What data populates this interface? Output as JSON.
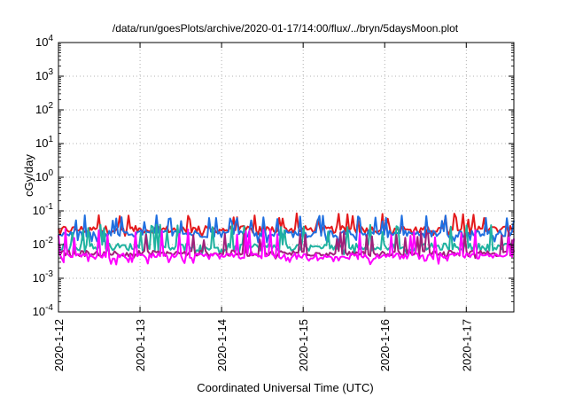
{
  "chart_data": {
    "type": "line",
    "title": "/data/run/goesPlots/archive/2020-01-17/14:00/flux/../bryn/5daysMoon.plot",
    "xlabel": "Coordinated Universal Time (UTC)",
    "ylabel": "cGy/day",
    "y_scale": "log",
    "ylim": [
      0.0001,
      10000
    ],
    "xlim": [
      "2020-01-12",
      "2020-01-17T14:00"
    ],
    "grid": true,
    "x_ticks": [
      "2020-1-12",
      "2020-1-13",
      "2020-1-14",
      "2020-1-15",
      "2020-1-16",
      "2020-1-17"
    ],
    "y_ticks": [
      {
        "base": "10",
        "exp": "-4"
      },
      {
        "base": "10",
        "exp": "-3"
      },
      {
        "base": "10",
        "exp": "-2"
      },
      {
        "base": "10",
        "exp": "-1"
      },
      {
        "base": "10",
        "exp": "0"
      },
      {
        "base": "10",
        "exp": "1"
      },
      {
        "base": "10",
        "exp": "2"
      },
      {
        "base": "10",
        "exp": "3"
      },
      {
        "base": "10",
        "exp": "4"
      }
    ],
    "series": [
      {
        "color": "#e41a1c",
        "baseline": 0.028,
        "spread": 0.25,
        "spike_high": 0.085,
        "dip_low": 0.02
      },
      {
        "color": "#1f6fe0",
        "baseline": 0.021,
        "spread": 0.25,
        "spike_high": 0.075,
        "dip_low": 0.012
      },
      {
        "color": "#20b2a0",
        "baseline": 0.0085,
        "spread": 0.25,
        "spike_high": 0.04,
        "dip_low": 0.006
      },
      {
        "color": "#a0207a",
        "baseline": 0.0055,
        "spread": 0.2,
        "spike_high": 0.025,
        "dip_low": 0.0045
      },
      {
        "color": "#ff00ff",
        "baseline": 0.0045,
        "spread": 0.2,
        "spike_high": 0.03,
        "dip_low": 0.003
      }
    ]
  }
}
